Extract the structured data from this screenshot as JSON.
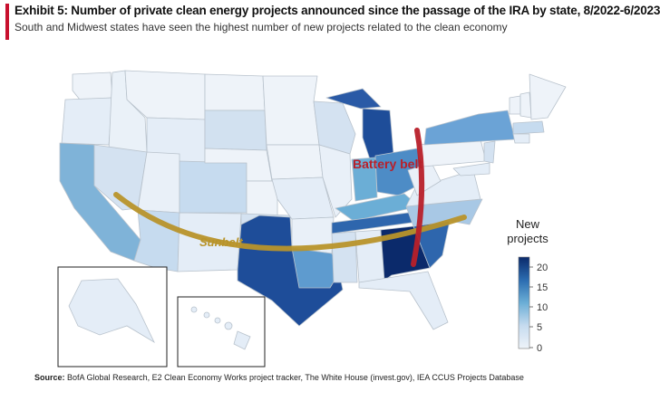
{
  "header": {
    "title": "Exhibit 5: Number of private clean energy projects announced since the passage of the IRA by state, 8/2022-6/2023",
    "subtitle": "South and Midwest states have seen the highest number of new projects related to the clean economy"
  },
  "map": {
    "annotations": {
      "battery_belt": "Battery belt",
      "sunbelt": "Sunbelt"
    },
    "colors": {
      "battery_belt": "#b8202a",
      "sunbelt": "#b8942a"
    },
    "legend": {
      "title_line1": "New",
      "title_line2": "projects",
      "ticks": [
        "0",
        "5",
        "10",
        "15",
        "20"
      ],
      "colors": [
        "#eef3f9",
        "#c6dbef",
        "#6baed6",
        "#2b6cb0",
        "#0b2a6b"
      ]
    }
  },
  "footer": {
    "source_label": "Source:",
    "source_text": "BofA Global Research, E2 Clean Economy Works project tracker, The White House (invest.gov), IEA CCUS Projects Database"
  }
}
